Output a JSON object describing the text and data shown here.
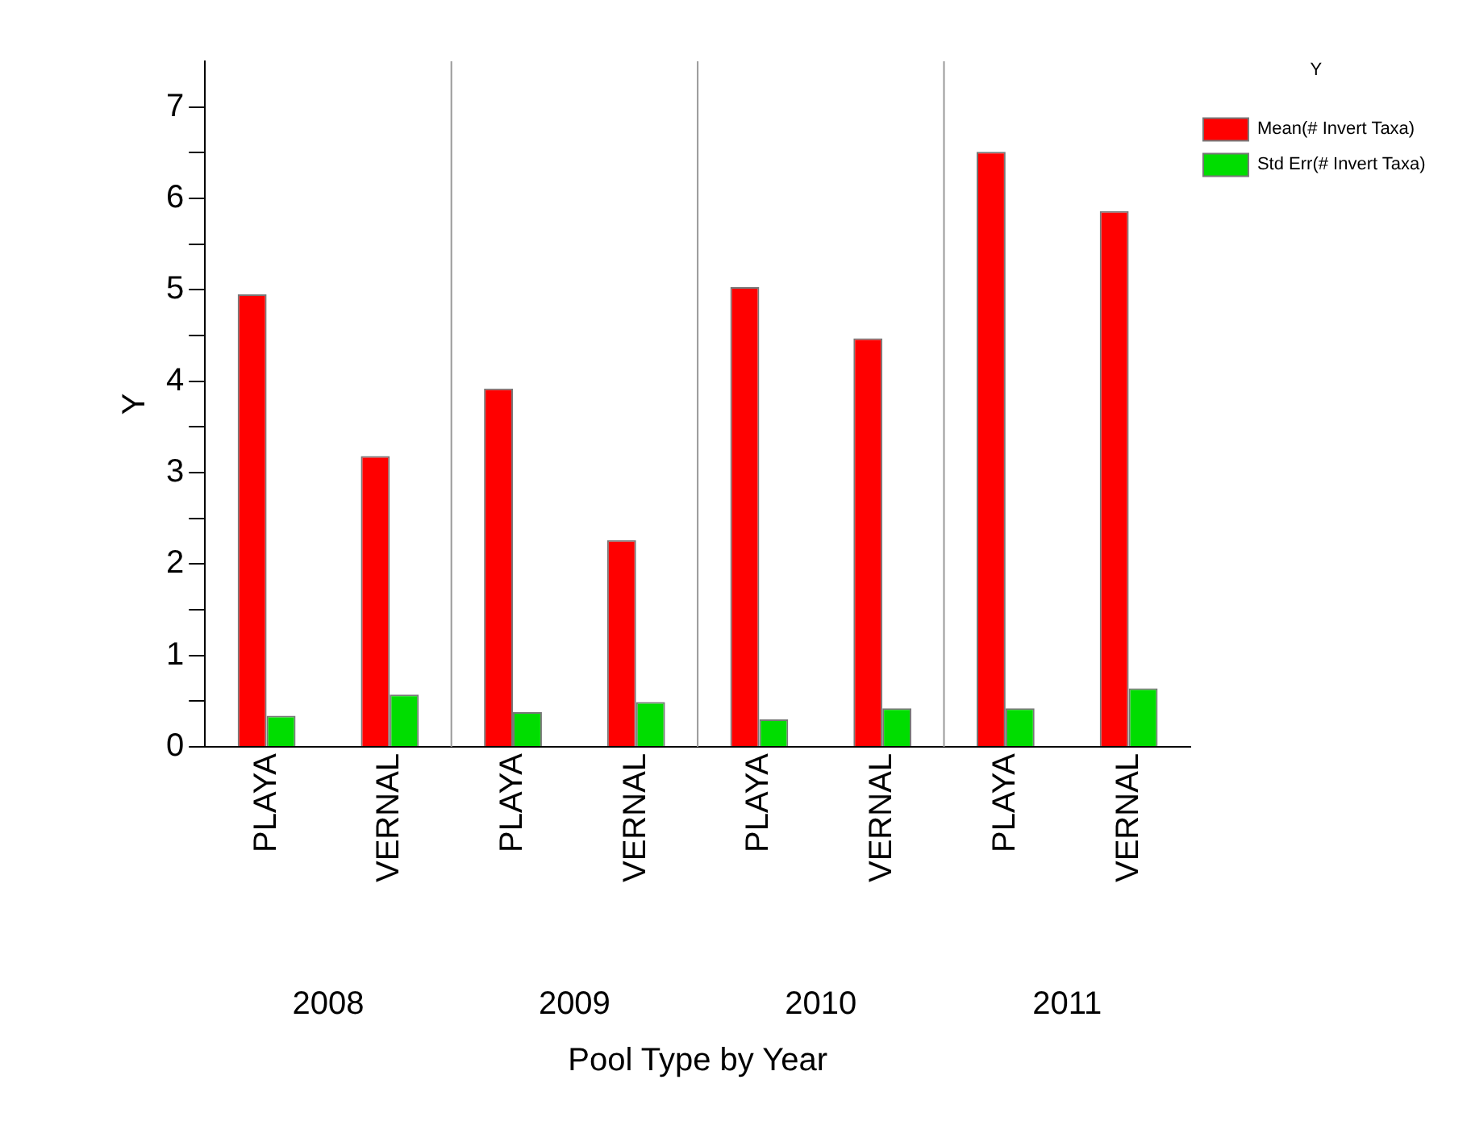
{
  "chart_data": {
    "type": "bar",
    "xlabel": "Pool Type by Year",
    "ylabel": "Y",
    "legend_title": "Y",
    "categories": [
      "PLAYA",
      "VERNAL",
      "PLAYA",
      "VERNAL",
      "PLAYA",
      "VERNAL",
      "PLAYA",
      "VERNAL"
    ],
    "series": [
      {
        "name": "Mean(# Invert Taxa)",
        "color": "#ff0000",
        "values": [
          4.95,
          3.18,
          3.92,
          2.26,
          5.03,
          4.47,
          6.51,
          5.86
        ]
      },
      {
        "name": "Std Err(# Invert Taxa)",
        "color": "#00dd00",
        "values": [
          0.34,
          0.57,
          0.38,
          0.49,
          0.3,
          0.42,
          0.42,
          0.64
        ]
      }
    ],
    "annotations": [
      "2008",
      "2009",
      "2010",
      "2011"
    ],
    "ylim": [
      0,
      7.5
    ],
    "yticks": [
      0,
      {
        "value": 0.5,
        "label": null
      },
      1,
      {
        "value": 1.5,
        "label": null
      },
      2,
      {
        "value": 2.5,
        "label": null
      },
      3,
      {
        "value": 3.5,
        "label": null
      },
      4,
      {
        "value": 4.5,
        "label": null
      },
      5,
      {
        "value": 5.5,
        "label": null
      },
      6,
      {
        "value": 6.5,
        "label": null
      },
      7
    ],
    "grid": false,
    "legend": "top right"
  }
}
